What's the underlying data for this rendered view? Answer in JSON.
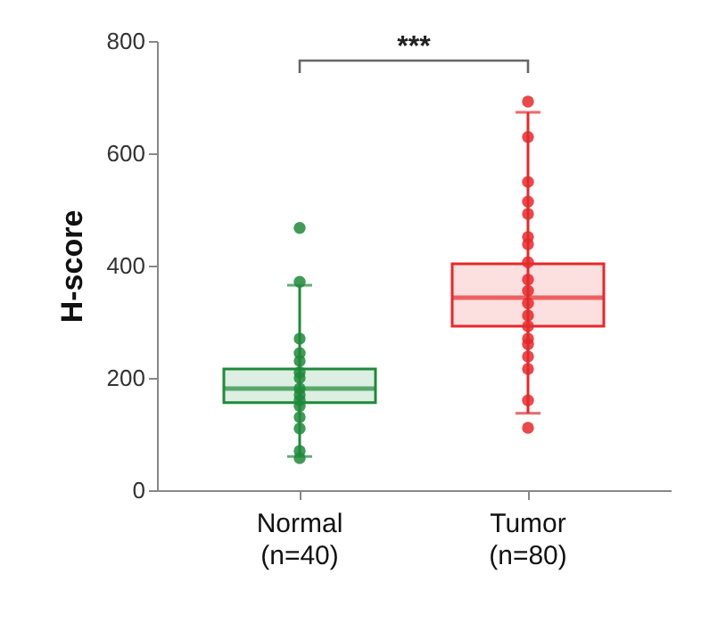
{
  "chart_data": {
    "type": "box",
    "categories": [
      "Normal\n(n=40)",
      "Tumor\n(n=80)"
    ],
    "ylabel": "H-score",
    "ylim": [
      0,
      800
    ],
    "yticks": [
      0,
      200,
      400,
      600,
      800
    ],
    "grid": false,
    "annotations": [
      "***"
    ],
    "colors": [
      "#1e8a3a",
      "#e8282a"
    ],
    "boxes": [
      {
        "low": 60,
        "q1": 156,
        "median": 181,
        "q3": 216,
        "high": 365
      },
      {
        "low": 137,
        "q1": 292,
        "median": 343,
        "q3": 403,
        "high": 673
      }
    ],
    "series": [
      {
        "type": "scatter",
        "color": "#1e8a3a",
        "x": [
          "Normal\n(n=40)",
          "Normal\n(n=40)",
          "Normal\n(n=40)",
          "Normal\n(n=40)",
          "Normal\n(n=40)",
          "Normal\n(n=40)",
          "Normal\n(n=40)",
          "Normal\n(n=40)",
          "Normal\n(n=40)",
          "Normal\n(n=40)",
          "Normal\n(n=40)",
          "Normal\n(n=40)",
          "Normal\n(n=40)",
          "Normal\n(n=40)",
          "Normal\n(n=40)"
        ],
        "values": [
          467,
          371,
          270,
          244,
          230,
          210,
          200,
          181,
          170,
          160,
          150,
          130,
          110,
          70,
          57
        ]
      },
      {
        "type": "scatter",
        "color": "#e8282a",
        "x": [
          "Tumor\n(n=80)",
          "Tumor\n(n=80)",
          "Tumor\n(n=80)",
          "Tumor\n(n=80)",
          "Tumor\n(n=80)",
          "Tumor\n(n=80)",
          "Tumor\n(n=80)",
          "Tumor\n(n=80)",
          "Tumor\n(n=80)",
          "Tumor\n(n=80)",
          "Tumor\n(n=80)",
          "Tumor\n(n=80)",
          "Tumor\n(n=80)",
          "Tumor\n(n=80)",
          "Tumor\n(n=80)",
          "Tumor\n(n=80)",
          "Tumor\n(n=80)",
          "Tumor\n(n=80)",
          "Tumor\n(n=80)"
        ],
        "values": [
          692,
          629,
          549,
          514,
          492,
          451,
          438,
          406,
          375,
          355,
          333,
          311,
          292,
          270,
          260,
          238,
          216,
          160,
          111
        ]
      }
    ]
  }
}
